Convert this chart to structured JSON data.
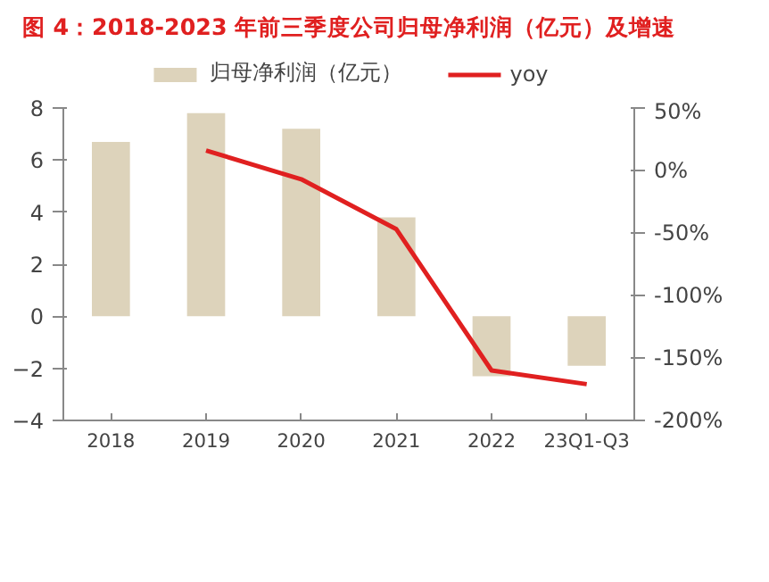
{
  "chart_data": {
    "type": "bar",
    "title": "图 4：2018-2023 年前三季度公司归母净利润（亿元）及增速",
    "categories": [
      "2018",
      "2019",
      "2020",
      "2021",
      "2022",
      "23Q1-Q3"
    ],
    "series": [
      {
        "name": "归母净利润（亿元）",
        "color": "#ddd3bb",
        "values": [
          6.7,
          7.8,
          7.2,
          3.8,
          -2.3,
          -1.9
        ]
      },
      {
        "name": "yoy",
        "type": "line",
        "axis": "y2",
        "color": "#e02020",
        "values": [
          null,
          16,
          -7,
          -47,
          -160,
          -171
        ]
      }
    ],
    "ylim": [
      -4,
      8
    ],
    "yticks": [
      -4,
      -2,
      0,
      2,
      4,
      6,
      8
    ],
    "y2lim": [
      -200,
      50
    ],
    "y2ticks": [
      {
        "value": -200,
        "label": "-200%"
      },
      {
        "value": -150,
        "label": "-150%"
      },
      {
        "value": -100,
        "label": "-100%"
      },
      {
        "value": -50,
        "label": "-50%"
      },
      {
        "value": 0,
        "label": "0%"
      },
      {
        "value": 50,
        "label": "50%"
      }
    ],
    "grid": false,
    "legend": "top",
    "line_style": "solid",
    "marker": "none"
  }
}
